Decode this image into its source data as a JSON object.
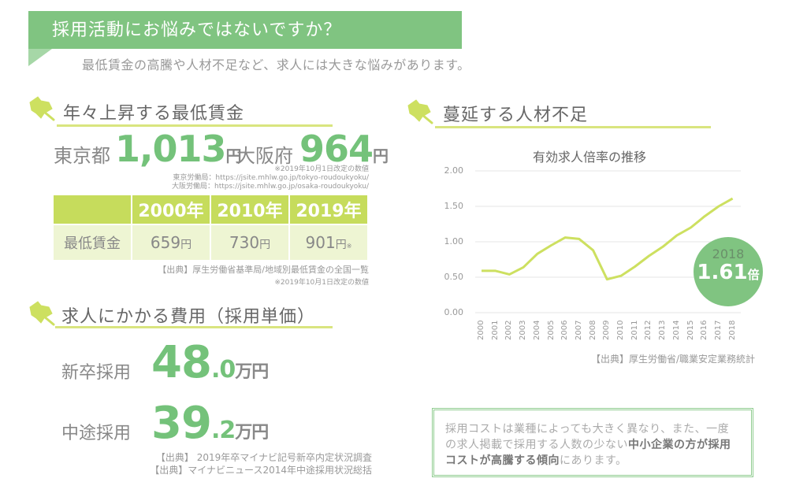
{
  "banner": {
    "title": "採用活動にお悩みではないですか？",
    "subtitle": "最低賃金の高騰や人材不足など、求人には大きな悩みがあります。"
  },
  "min_wage": {
    "section_title": "年々上昇する最低賃金",
    "tokyo_label": "東京都",
    "tokyo_value": "1,013",
    "osaka_label": "大阪府",
    "osaka_value": "964",
    "unit": "円",
    "note": "※2019年10月1日改定の数値",
    "tokyo_source": "東京労働局：https://jsite.mhlw.go.jp/tokyo-roudoukyoku/",
    "osaka_source": "大阪労働局：https://jsite.mhlw.go.jp/osaka-roudoukyoku/",
    "table": {
      "headers": [
        "",
        "2000年",
        "2010年",
        "2019年"
      ],
      "row_label": "最低賃金",
      "values": [
        "659",
        "730",
        "901"
      ],
      "unit": "円",
      "mark": "※"
    },
    "source": "【出典】厚生労働省基準局/地域別最低賃金の全国一覧",
    "source_note": "※2019年10月1日改定の数値"
  },
  "hiring_cost": {
    "section_title": "求人にかかる費用（採用単価）",
    "new_grad_label": "新卒採用",
    "new_grad_int": "48",
    "new_grad_dec": ".0",
    "mid_career_label": "中途採用",
    "mid_career_int": "39",
    "mid_career_dec": ".2",
    "unit": "万円",
    "source1": "【出典】 2019年卒マイナビ記号新卒内定状況調査",
    "source2": "【出典】マイナビニュース2014年中途採用状況総括"
  },
  "shortage": {
    "section_title": "蔓延する人材不足",
    "badge_year": "2018",
    "badge_value": "1.61",
    "badge_unit": "倍",
    "source": "【出典】厚生労働省/職業安定業務統計"
  },
  "chart_data": {
    "type": "line",
    "title": "有効求人倍率の推移",
    "xlabel": "",
    "ylabel": "",
    "x": [
      "2000",
      "2001",
      "2002",
      "2003",
      "2004",
      "2005",
      "2006",
      "2007",
      "2008",
      "2009",
      "2010",
      "2011",
      "2012",
      "2013",
      "2014",
      "2015",
      "2016",
      "2017",
      "2018"
    ],
    "series": [
      {
        "name": "有効求人倍率",
        "values": [
          0.59,
          0.59,
          0.54,
          0.64,
          0.83,
          0.95,
          1.06,
          1.04,
          0.88,
          0.47,
          0.52,
          0.65,
          0.8,
          0.93,
          1.09,
          1.2,
          1.36,
          1.5,
          1.61
        ]
      }
    ],
    "yticks": [
      "2.00",
      "1.50",
      "1.00",
      "0.50",
      "0.00"
    ],
    "ylim": [
      0,
      2.0
    ],
    "grid": true,
    "line_color": "#cde060"
  },
  "info_box": {
    "text_plain": "採用コストは業種によっても大きく異なり、また、一度の求人掲載で採用する人数の少ない",
    "text_bold1": "中小企業の方が採用コストが高騰する傾向",
    "text_end": "にあります。"
  },
  "colors": {
    "green": "#80c481",
    "lime": "#c6dc5c",
    "number_green": "#74c27a"
  }
}
